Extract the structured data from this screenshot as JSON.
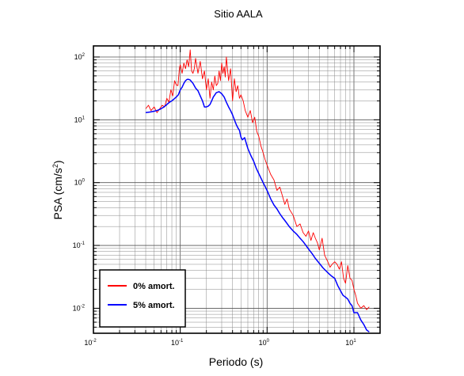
{
  "chart_data": {
    "type": "line",
    "title": "Sitio AALA",
    "xlabel": "Periodo (s)",
    "ylabel": "PSA (cm/s",
    "ylabel_sup": "2",
    "ylabel_close": ")",
    "xscale": "log",
    "yscale": "log",
    "xlim": [
      0.01,
      20
    ],
    "ylim": [
      0.004,
      150
    ],
    "grid": true,
    "legend_position": "bottom-left",
    "x_ticks": [
      {
        "base": "10",
        "exp": "-2"
      },
      {
        "base": "10",
        "exp": "-1"
      },
      {
        "base": "10",
        "exp": "0"
      },
      {
        "base": "10",
        "exp": "1"
      }
    ],
    "y_ticks": [
      {
        "base": "10",
        "exp": "-2"
      },
      {
        "base": "10",
        "exp": "-1"
      },
      {
        "base": "10",
        "exp": "0"
      },
      {
        "base": "10",
        "exp": "1"
      },
      {
        "base": "10",
        "exp": "2"
      }
    ],
    "series": [
      {
        "name": "0% amort.",
        "color": "#ff0000",
        "x": [
          0.04,
          0.043,
          0.046,
          0.05,
          0.054,
          0.058,
          0.062,
          0.066,
          0.07,
          0.074,
          0.078,
          0.082,
          0.086,
          0.09,
          0.094,
          0.098,
          0.1,
          0.105,
          0.11,
          0.115,
          0.12,
          0.125,
          0.13,
          0.135,
          0.14,
          0.145,
          0.15,
          0.16,
          0.17,
          0.18,
          0.19,
          0.2,
          0.21,
          0.22,
          0.23,
          0.24,
          0.25,
          0.26,
          0.27,
          0.28,
          0.29,
          0.3,
          0.31,
          0.32,
          0.33,
          0.34,
          0.36,
          0.38,
          0.4,
          0.42,
          0.44,
          0.46,
          0.48,
          0.5,
          0.53,
          0.56,
          0.6,
          0.64,
          0.68,
          0.72,
          0.76,
          0.8,
          0.85,
          0.9,
          0.95,
          1.0,
          1.1,
          1.2,
          1.3,
          1.4,
          1.5,
          1.6,
          1.7,
          1.8,
          2.0,
          2.2,
          2.4,
          2.6,
          2.8,
          3.0,
          3.2,
          3.4,
          3.6,
          3.8,
          4.0,
          4.3,
          4.6,
          5.0,
          5.3,
          5.6,
          6.0,
          6.4,
          6.8,
          7.2,
          7.6,
          8.0,
          8.5,
          9.0,
          9.5,
          10.0,
          10.5,
          11.0,
          12.0,
          13.0,
          14.0,
          15.0
        ],
        "y": [
          15,
          17,
          14,
          16,
          13,
          15,
          17,
          16,
          22,
          19,
          30,
          24,
          42,
          36,
          35,
          68,
          75,
          55,
          80,
          65,
          90,
          70,
          130,
          60,
          55,
          65,
          95,
          55,
          85,
          45,
          60,
          30,
          45,
          22,
          40,
          30,
          50,
          35,
          38,
          60,
          42,
          80,
          55,
          70,
          48,
          100,
          42,
          65,
          20,
          45,
          28,
          35,
          22,
          25,
          20,
          14,
          11,
          14,
          9,
          11,
          6.5,
          5.5,
          3.8,
          3.0,
          2.3,
          1.9,
          1.35,
          1.1,
          0.75,
          0.85,
          0.62,
          0.45,
          0.55,
          0.38,
          0.3,
          0.2,
          0.22,
          0.16,
          0.14,
          0.17,
          0.12,
          0.16,
          0.13,
          0.11,
          0.085,
          0.13,
          0.07,
          0.055,
          0.045,
          0.05,
          0.055,
          0.05,
          0.042,
          0.055,
          0.03,
          0.025,
          0.048,
          0.03,
          0.028,
          0.02,
          0.016,
          0.012,
          0.01,
          0.011,
          0.0095,
          0.0105
        ]
      },
      {
        "name": "5% amort.",
        "color": "#0000ff",
        "x": [
          0.04,
          0.045,
          0.05,
          0.055,
          0.06,
          0.065,
          0.07,
          0.075,
          0.08,
          0.085,
          0.09,
          0.095,
          0.1,
          0.105,
          0.11,
          0.115,
          0.12,
          0.125,
          0.13,
          0.14,
          0.15,
          0.16,
          0.17,
          0.18,
          0.19,
          0.2,
          0.21,
          0.22,
          0.23,
          0.24,
          0.26,
          0.28,
          0.3,
          0.32,
          0.34,
          0.36,
          0.38,
          0.4,
          0.42,
          0.44,
          0.46,
          0.48,
          0.5,
          0.52,
          0.55,
          0.6,
          0.65,
          0.7,
          0.75,
          0.8,
          0.9,
          1.0,
          1.1,
          1.2,
          1.3,
          1.4,
          1.5,
          1.6,
          1.8,
          2.0,
          2.2,
          2.4,
          2.6,
          2.8,
          3.0,
          3.3,
          3.6,
          4.0,
          4.4,
          4.8,
          5.2,
          5.6,
          6.0,
          6.5,
          7.0,
          7.5,
          8.0,
          8.5,
          9.0,
          9.5,
          10.0,
          10.5,
          11.0,
          12.0,
          13.0,
          14.0,
          15.0
        ],
        "y": [
          13,
          13.3,
          13.7,
          14.2,
          15,
          16,
          17.5,
          19,
          20,
          21.5,
          23,
          25,
          30,
          33,
          38,
          42,
          44,
          44,
          43,
          38,
          32,
          29,
          24,
          20,
          16,
          16,
          16.5,
          17.5,
          20,
          23,
          27,
          28,
          26,
          23,
          19,
          16,
          14,
          12,
          10,
          8.5,
          7.5,
          6.8,
          5.3,
          4.8,
          5.2,
          3.5,
          2.7,
          2.2,
          1.7,
          1.4,
          1.0,
          0.75,
          0.55,
          0.44,
          0.38,
          0.32,
          0.28,
          0.25,
          0.2,
          0.17,
          0.15,
          0.13,
          0.115,
          0.1,
          0.088,
          0.074,
          0.062,
          0.052,
          0.044,
          0.039,
          0.035,
          0.032,
          0.03,
          0.023,
          0.019,
          0.016,
          0.015,
          0.014,
          0.012,
          0.011,
          0.0085,
          0.0085,
          0.0085,
          0.0065,
          0.0055,
          0.0045,
          0.0042
        ]
      }
    ]
  }
}
